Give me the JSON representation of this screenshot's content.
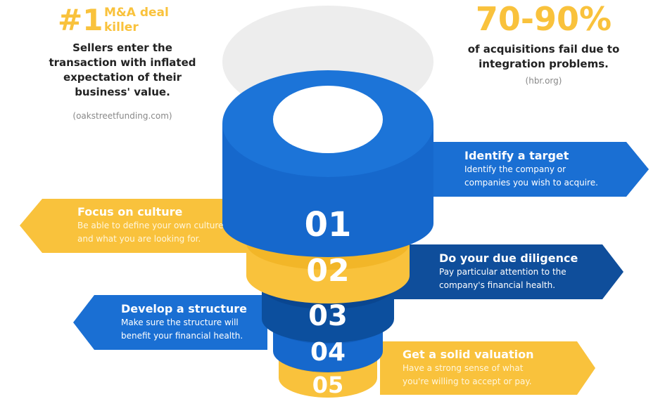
{
  "left_stat": {
    "value": "#1",
    "label_line1": "M&A deal",
    "label_line2": "killer",
    "body_lines": [
      "Sellers enter the",
      "transaction with inflated",
      "expectation of their",
      "business' value."
    ],
    "source": "(oakstreetfunding.com)"
  },
  "right_stat": {
    "value": "70-90%",
    "body_lines": [
      "of acquisitions fail due to",
      "integration problems."
    ],
    "source": "(hbr.org)"
  },
  "steps": [
    {
      "number": "01",
      "title": "Identify a target",
      "desc_lines": [
        "Identify the company or",
        "companies you wish to acquire."
      ]
    },
    {
      "number": "02",
      "title": "Focus on culture",
      "desc_lines": [
        "Be able to define your own culture",
        "and what you are looking for."
      ]
    },
    {
      "number": "03",
      "title": "Do your due diligence",
      "desc_lines": [
        "Pay particular attention to the",
        "company's financial health."
      ]
    },
    {
      "number": "04",
      "title": "Develop a structure",
      "desc_lines": [
        "Make sure the structure will",
        "benefit your financial health."
      ]
    },
    {
      "number": "05",
      "title": "Get a solid valuation",
      "desc_lines": [
        "Have a strong sense of what",
        "you're willing to accept or pay."
      ]
    }
  ],
  "colors": {
    "yellow": "#f9c23c",
    "blue": "#1c74d8",
    "dark_blue": "#0c4f9e",
    "mid_blue": "#1565c9",
    "grey": "#eeeeee"
  }
}
